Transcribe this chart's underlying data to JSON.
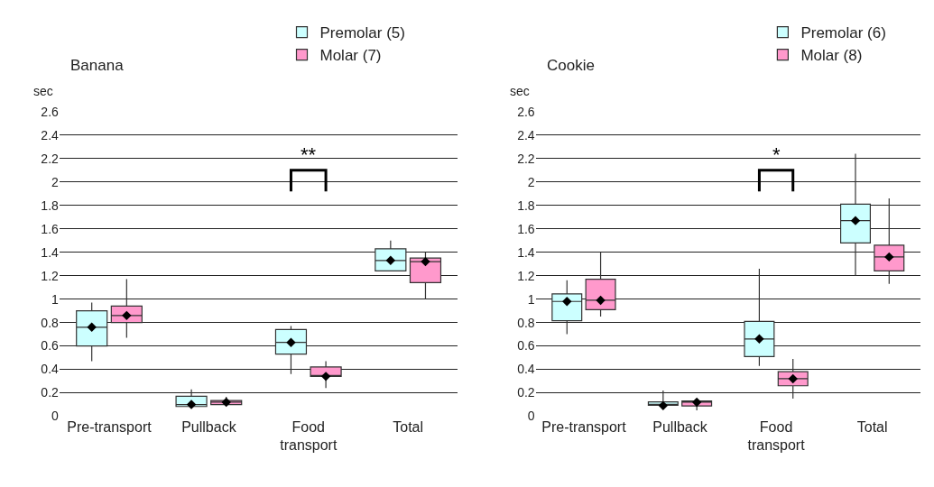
{
  "chart_data": [
    {
      "type": "box",
      "title": "Banana",
      "ylabel": "sec",
      "categories": [
        "Pre-transport",
        "Pullback",
        "Food\ntransport",
        "Total"
      ],
      "ylim": [
        0,
        2.6
      ],
      "yticks": [
        0,
        0.2,
        0.4,
        0.6,
        0.8,
        1,
        1.2,
        1.4,
        1.6,
        1.8,
        2,
        2.2,
        2.4,
        2.6
      ],
      "grid": "y",
      "legend": "top",
      "annotations": [
        "**"
      ],
      "series": [
        {
          "name": "Premolar (5)",
          "color": "#ccffff",
          "boxes": [
            {
              "low": 0.47,
              "q1": 0.6,
              "median": 0.76,
              "q3": 0.9,
              "high": 0.97,
              "mean": 0.76
            },
            {
              "low": 0.07,
              "q1": 0.083,
              "median": 0.1,
              "q3": 0.17,
              "high": 0.23,
              "mean": 0.1
            },
            {
              "low": 0.36,
              "q1": 0.53,
              "median": 0.63,
              "q3": 0.74,
              "high": 0.77,
              "mean": 0.63
            },
            {
              "low": 1.24,
              "q1": 1.24,
              "median": 1.33,
              "q3": 1.43,
              "high": 1.5,
              "mean": 1.33
            }
          ]
        },
        {
          "name": "Molar (7)",
          "color": "#ff99cc",
          "boxes": [
            {
              "low": 0.67,
              "q1": 0.8,
              "median": 0.86,
              "q3": 0.94,
              "high": 1.17,
              "mean": 0.86
            },
            {
              "low": 0.1,
              "q1": 0.1,
              "median": 0.12,
              "q3": 0.134,
              "high": 0.165,
              "mean": 0.12
            },
            {
              "low": 0.24,
              "q1": 0.34,
              "median": 0.34,
              "q3": 0.42,
              "high": 0.47,
              "mean": 0.34
            },
            {
              "low": 1.0,
              "q1": 1.14,
              "median": 1.32,
              "q3": 1.35,
              "high": 1.4,
              "mean": 1.32
            }
          ]
        }
      ]
    },
    {
      "type": "box",
      "title": "Cookie",
      "ylabel": "sec",
      "categories": [
        "Pre-transport",
        "Pullback",
        "Food\ntransport",
        "Total"
      ],
      "ylim": [
        0,
        2.6
      ],
      "yticks": [
        0,
        0.2,
        0.4,
        0.6,
        0.8,
        1,
        1.2,
        1.4,
        1.6,
        1.8,
        2,
        2.2,
        2.4,
        2.6
      ],
      "grid": "y",
      "legend": "top",
      "annotations": [
        "*"
      ],
      "series": [
        {
          "name": "Premolar (6)",
          "color": "#ccffff",
          "boxes": [
            {
              "low": 0.7,
              "q1": 0.815,
              "median": 0.98,
              "q3": 1.045,
              "high": 1.16,
              "mean": 0.98
            },
            {
              "low": 0.07,
              "q1": 0.094,
              "median": 0.1,
              "q3": 0.123,
              "high": 0.22,
              "mean": 0.09
            },
            {
              "low": 0.43,
              "q1": 0.51,
              "median": 0.66,
              "q3": 0.81,
              "high": 1.26,
              "mean": 0.66
            },
            {
              "low": 1.2,
              "q1": 1.48,
              "median": 1.67,
              "q3": 1.81,
              "high": 2.24,
              "mean": 1.67
            }
          ]
        },
        {
          "name": "Molar (8)",
          "color": "#ff99cc",
          "boxes": [
            {
              "low": 0.85,
              "q1": 0.91,
              "median": 0.99,
              "q3": 1.17,
              "high": 1.4,
              "mean": 0.99
            },
            {
              "low": 0.05,
              "q1": 0.087,
              "median": 0.12,
              "q3": 0.13,
              "high": 0.15,
              "mean": 0.12
            },
            {
              "low": 0.15,
              "q1": 0.26,
              "median": 0.32,
              "q3": 0.38,
              "high": 0.49,
              "mean": 0.32
            },
            {
              "low": 1.13,
              "q1": 1.24,
              "median": 1.36,
              "q3": 1.46,
              "high": 1.86,
              "mean": 1.36
            }
          ]
        }
      ]
    }
  ]
}
